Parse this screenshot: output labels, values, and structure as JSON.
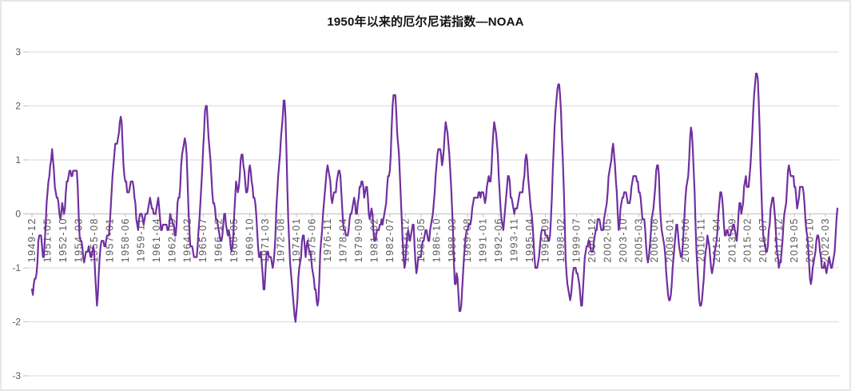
{
  "frame": {
    "background": "#ffffff",
    "border_color": "#e7e7e7"
  },
  "chart_data": {
    "type": "line",
    "title": "1950年以来的厄尔尼诺指数—NOAA",
    "series_name": "厄尔尼诺指数 (NOAA ONI)",
    "x_start": "1949-12",
    "x_end": "2023-04",
    "x_tick_interval_months": 17,
    "x_tick_labels": [
      "1949-12",
      "1951-05",
      "1952-10",
      "1954-03",
      "1955-08",
      "1957-01",
      "1958-06",
      "1959-11",
      "1961-04",
      "1962-09",
      "1964-02",
      "1965-07",
      "1966-12",
      "1968-05",
      "1969-10",
      "1971-03",
      "1972-08",
      "1974-01",
      "1975-06",
      "1976-11",
      "1978-04",
      "1979-09",
      "1981-02",
      "1982-07",
      "1983-12",
      "1985-05",
      "1986-10",
      "1988-03",
      "1989-08",
      "1991-01",
      "1992-06",
      "1993-11",
      "1995-04",
      "1996-09",
      "1998-02",
      "1999-07",
      "2000-12",
      "2002-05",
      "2003-10",
      "2005-03",
      "2006-08",
      "2008-01",
      "2009-06",
      "2010-11",
      "2012-04",
      "2013-09",
      "2015-02",
      "2016-07",
      "2017-12",
      "2019-05",
      "2020-10",
      "2022-03"
    ],
    "y_ticks": [
      3,
      2,
      1,
      0,
      -1,
      -2,
      -3
    ],
    "y_tick_labels": [
      "3",
      "2",
      "1",
      "0",
      "-1",
      "-2",
      "-3"
    ],
    "ylim": [
      -3,
      3
    ],
    "grid": true,
    "legend": "none",
    "line_color": "#7030A0",
    "gridline_color": "#d9d9d9",
    "axis_line_color": "#bfbfbf",
    "axis_label_color": "#595959",
    "values": [
      -1.4,
      -1.5,
      -1.3,
      -1.2,
      -1.2,
      -1.1,
      -0.9,
      -0.5,
      -0.4,
      -0.4,
      -0.4,
      -0.6,
      -0.8,
      -0.8,
      -0.5,
      -0.2,
      0.2,
      0.4,
      0.6,
      0.7,
      0.9,
      1.0,
      1.2,
      1.0,
      0.8,
      0.5,
      0.4,
      0.3,
      0.3,
      0.2,
      0.0,
      -0.1,
      0.0,
      0.2,
      0.1,
      0.0,
      0.1,
      0.4,
      0.6,
      0.6,
      0.7,
      0.8,
      0.8,
      0.7,
      0.7,
      0.8,
      0.8,
      0.8,
      0.8,
      0.8,
      0.5,
      0.0,
      -0.4,
      -0.5,
      -0.5,
      -0.6,
      -0.8,
      -0.9,
      -0.8,
      -0.7,
      -0.7,
      -0.7,
      -0.6,
      -0.7,
      -0.8,
      -0.8,
      -0.7,
      -0.6,
      -0.7,
      -1.1,
      -1.4,
      -1.7,
      -1.5,
      -1.1,
      -0.8,
      -0.6,
      -0.5,
      -0.5,
      -0.5,
      -0.6,
      -0.6,
      -0.5,
      -0.4,
      -0.4,
      -0.4,
      -0.2,
      0.1,
      0.4,
      0.7,
      0.9,
      1.1,
      1.3,
      1.3,
      1.3,
      1.4,
      1.5,
      1.7,
      1.8,
      1.7,
      1.3,
      0.9,
      0.7,
      0.6,
      0.6,
      0.4,
      0.4,
      0.4,
      0.5,
      0.6,
      0.6,
      0.6,
      0.5,
      0.3,
      0.2,
      -0.1,
      -0.2,
      -0.3,
      -0.1,
      0.0,
      0.0,
      0.0,
      -0.1,
      -0.2,
      -0.1,
      0.0,
      0.0,
      0.0,
      0.1,
      0.2,
      0.3,
      0.2,
      0.1,
      0.1,
      0.0,
      0.0,
      0.0,
      0.1,
      0.2,
      0.3,
      0.1,
      -0.1,
      -0.3,
      -0.3,
      -0.2,
      -0.2,
      -0.2,
      -0.2,
      -0.2,
      -0.3,
      -0.3,
      -0.2,
      0.0,
      -0.1,
      -0.1,
      -0.2,
      -0.2,
      -0.4,
      -0.4,
      -0.2,
      0.2,
      0.3,
      0.3,
      0.5,
      0.9,
      1.1,
      1.2,
      1.3,
      1.4,
      1.3,
      1.1,
      0.6,
      0.1,
      -0.3,
      -0.6,
      -0.6,
      -0.6,
      -0.7,
      -0.8,
      -0.8,
      -0.8,
      -0.8,
      -0.6,
      -0.3,
      -0.1,
      0.2,
      0.5,
      0.8,
      1.2,
      1.5,
      1.9,
      2.0,
      2.0,
      1.7,
      1.4,
      1.2,
      1.0,
      0.7,
      0.4,
      0.2,
      0.2,
      0.1,
      -0.1,
      -0.1,
      -0.2,
      -0.3,
      -0.4,
      -0.5,
      -0.5,
      -0.4,
      -0.2,
      0.0,
      0.0,
      -0.2,
      -0.3,
      -0.4,
      -0.3,
      -0.4,
      -0.6,
      -0.7,
      -0.6,
      -0.4,
      0.0,
      0.3,
      0.6,
      0.5,
      0.4,
      0.5,
      0.7,
      1.0,
      1.1,
      1.1,
      0.9,
      0.8,
      0.6,
      0.4,
      0.4,
      0.5,
      0.8,
      0.9,
      0.8,
      0.6,
      0.5,
      0.3,
      0.3,
      0.2,
      0.0,
      -0.3,
      -0.6,
      -0.8,
      -0.8,
      -0.7,
      -0.9,
      -1.1,
      -1.4,
      -1.4,
      -1.1,
      -0.8,
      -0.7,
      -0.7,
      -0.8,
      -0.8,
      -0.8,
      -0.9,
      -1.0,
      -0.9,
      -0.7,
      -0.4,
      0.1,
      0.4,
      0.7,
      0.9,
      1.1,
      1.4,
      1.6,
      1.8,
      2.1,
      2.1,
      1.8,
      1.2,
      0.5,
      -0.1,
      -0.5,
      -0.9,
      -1.1,
      -1.3,
      -1.5,
      -1.7,
      -1.9,
      -2.0,
      -1.8,
      -1.6,
      -1.2,
      -1.0,
      -0.9,
      -0.8,
      -0.5,
      -0.4,
      -0.4,
      -0.6,
      -0.8,
      -0.6,
      -0.5,
      -0.6,
      -0.7,
      -0.7,
      -0.8,
      -1.0,
      -1.1,
      -1.2,
      -1.4,
      -1.4,
      -1.6,
      -1.7,
      -1.6,
      -1.2,
      -0.7,
      -0.5,
      -0.3,
      0.0,
      0.2,
      0.4,
      0.6,
      0.8,
      0.9,
      0.8,
      0.7,
      0.6,
      0.3,
      0.2,
      0.3,
      0.4,
      0.4,
      0.4,
      0.6,
      0.7,
      0.8,
      0.8,
      0.7,
      0.4,
      0.1,
      -0.2,
      -0.3,
      -0.3,
      -0.4,
      -0.4,
      -0.4,
      -0.3,
      -0.1,
      0.0,
      0.0,
      0.1,
      0.2,
      0.3,
      0.2,
      0.0,
      0.0,
      0.2,
      0.3,
      0.5,
      0.5,
      0.6,
      0.6,
      0.5,
      0.3,
      0.4,
      0.5,
      0.5,
      0.3,
      0.0,
      -0.1,
      0.0,
      0.1,
      0.0,
      -0.3,
      -0.5,
      -0.5,
      -0.4,
      -0.3,
      -0.3,
      -0.3,
      -0.2,
      -0.2,
      -0.1,
      -0.2,
      -0.1,
      0.0,
      0.1,
      0.2,
      0.5,
      0.7,
      0.7,
      0.8,
      1.1,
      1.6,
      2.0,
      2.2,
      2.2,
      2.2,
      1.9,
      1.5,
      1.3,
      1.1,
      0.7,
      0.3,
      -0.1,
      -0.5,
      -0.8,
      -1.0,
      -0.9,
      -0.6,
      -0.4,
      -0.3,
      -0.4,
      -0.5,
      -0.4,
      -0.3,
      -0.2,
      -0.2,
      -0.6,
      -0.9,
      -1.1,
      -1.0,
      -0.8,
      -0.8,
      -0.8,
      -0.8,
      -0.6,
      -0.5,
      -0.5,
      -0.4,
      -0.3,
      -0.3,
      -0.4,
      -0.5,
      -0.5,
      -0.3,
      -0.2,
      -0.1,
      0.0,
      0.2,
      0.4,
      0.7,
      0.9,
      1.1,
      1.2,
      1.2,
      1.2,
      1.1,
      0.9,
      1.0,
      1.2,
      1.5,
      1.7,
      1.6,
      1.5,
      1.3,
      1.1,
      0.8,
      0.5,
      0.1,
      -0.3,
      -0.9,
      -1.3,
      -1.3,
      -1.1,
      -1.2,
      -1.5,
      -1.8,
      -1.8,
      -1.7,
      -1.4,
      -1.1,
      -0.8,
      -0.6,
      -0.4,
      -0.3,
      -0.3,
      -0.2,
      -0.2,
      -0.2,
      -0.1,
      0.1,
      0.2,
      0.3,
      0.3,
      0.3,
      0.3,
      0.3,
      0.4,
      0.4,
      0.3,
      0.4,
      0.4,
      0.4,
      0.3,
      0.2,
      0.3,
      0.5,
      0.6,
      0.7,
      0.6,
      0.6,
      0.8,
      1.2,
      1.5,
      1.7,
      1.6,
      1.5,
      1.3,
      1.1,
      0.7,
      0.4,
      0.1,
      -0.1,
      -0.2,
      -0.3,
      -0.1,
      0.1,
      0.3,
      0.5,
      0.7,
      0.7,
      0.6,
      0.3,
      0.3,
      0.2,
      0.1,
      0.0,
      0.1,
      0.1,
      0.1,
      0.2,
      0.3,
      0.4,
      0.4,
      0.4,
      0.4,
      0.6,
      0.7,
      1.0,
      1.1,
      1.0,
      0.7,
      0.5,
      0.3,
      0.1,
      0.0,
      -0.2,
      -0.5,
      -0.8,
      -1.0,
      -1.0,
      -1.0,
      -0.9,
      -0.8,
      -0.6,
      -0.4,
      -0.3,
      -0.3,
      -0.3,
      -0.3,
      -0.4,
      -0.4,
      -0.4,
      -0.5,
      -0.5,
      -0.4,
      -0.1,
      0.3,
      0.8,
      1.2,
      1.6,
      1.9,
      2.1,
      2.3,
      2.4,
      2.4,
      2.2,
      1.9,
      1.4,
      1.0,
      0.5,
      -0.1,
      -0.8,
      -1.1,
      -1.3,
      -1.4,
      -1.5,
      -1.6,
      -1.5,
      -1.3,
      -1.1,
      -1.0,
      -1.0,
      -1.0,
      -1.1,
      -1.1,
      -1.2,
      -1.3,
      -1.5,
      -1.7,
      -1.7,
      -1.4,
      -1.1,
      -0.8,
      -0.7,
      -0.6,
      -0.6,
      -0.5,
      -0.5,
      -0.6,
      -0.7,
      -0.7,
      -0.7,
      -0.5,
      -0.4,
      -0.3,
      -0.3,
      -0.1,
      -0.1,
      -0.1,
      -0.2,
      -0.3,
      -0.3,
      -0.3,
      -0.1,
      0.0,
      0.1,
      0.2,
      0.4,
      0.7,
      0.8,
      0.9,
      1.0,
      1.2,
      1.3,
      1.1,
      0.9,
      0.6,
      0.4,
      0.0,
      -0.3,
      -0.2,
      0.1,
      0.2,
      0.3,
      0.3,
      0.4,
      0.4,
      0.4,
      0.3,
      0.2,
      0.2,
      0.2,
      0.3,
      0.5,
      0.6,
      0.7,
      0.7,
      0.7,
      0.7,
      0.6,
      0.6,
      0.4,
      0.4,
      0.3,
      0.1,
      -0.1,
      -0.1,
      -0.1,
      -0.3,
      -0.6,
      -0.8,
      -0.9,
      -0.8,
      -0.6,
      -0.4,
      -0.1,
      0.0,
      0.1,
      0.3,
      0.5,
      0.8,
      0.9,
      0.9,
      0.7,
      0.2,
      -0.1,
      -0.3,
      -0.4,
      -0.5,
      -0.6,
      -0.8,
      -1.1,
      -1.3,
      -1.5,
      -1.6,
      -1.6,
      -1.5,
      -1.3,
      -1.0,
      -0.8,
      -0.6,
      -0.4,
      -0.2,
      -0.2,
      -0.4,
      -0.6,
      -0.7,
      -0.8,
      -0.8,
      -0.6,
      -0.3,
      0.0,
      0.3,
      0.5,
      0.6,
      0.7,
      1.0,
      1.4,
      1.6,
      1.5,
      1.2,
      0.8,
      0.4,
      -0.2,
      -0.7,
      -1.0,
      -1.3,
      -1.6,
      -1.7,
      -1.7,
      -1.6,
      -1.4,
      -1.2,
      -0.9,
      -0.7,
      -0.6,
      -0.4,
      -0.5,
      -0.6,
      -0.8,
      -1.0,
      -1.1,
      -1.0,
      -0.9,
      -0.7,
      -0.6,
      -0.5,
      -0.3,
      0.0,
      0.2,
      0.4,
      0.4,
      0.3,
      0.1,
      -0.2,
      -0.4,
      -0.4,
      -0.3,
      -0.3,
      -0.4,
      -0.4,
      -0.4,
      -0.3,
      -0.3,
      -0.2,
      -0.2,
      -0.3,
      -0.4,
      -0.5,
      -0.3,
      0.0,
      0.2,
      0.2,
      0.0,
      0.1,
      0.2,
      0.5,
      0.6,
      0.7,
      0.5,
      0.5,
      0.5,
      0.7,
      0.9,
      1.2,
      1.5,
      1.9,
      2.2,
      2.4,
      2.6,
      2.6,
      2.5,
      2.1,
      1.6,
      0.9,
      0.4,
      -0.1,
      -0.4,
      -0.5,
      -0.6,
      -0.7,
      -0.7,
      -0.6,
      -0.3,
      -0.2,
      0.1,
      0.2,
      0.3,
      0.3,
      0.1,
      -0.1,
      -0.4,
      -0.7,
      -0.8,
      -1.0,
      -0.9,
      -0.9,
      -0.7,
      -0.5,
      -0.2,
      0.0,
      0.1,
      0.2,
      0.5,
      0.8,
      0.9,
      0.8,
      0.7,
      0.7,
      0.7,
      0.7,
      0.5,
      0.5,
      0.3,
      0.1,
      0.2,
      0.3,
      0.5,
      0.5,
      0.5,
      0.5,
      0.4,
      0.2,
      -0.1,
      -0.3,
      -0.4,
      -0.6,
      -0.9,
      -1.2,
      -1.3,
      -1.2,
      -1.0,
      -0.9,
      -0.8,
      -0.7,
      -0.5,
      -0.4,
      -0.4,
      -0.5,
      -0.7,
      -0.8,
      -1.0,
      -1.0,
      -1.0,
      -0.9,
      -1.0,
      -1.1,
      -1.0,
      -0.9,
      -0.8,
      -0.9,
      -1.0,
      -1.0,
      -0.9,
      -0.8,
      -0.7,
      -0.4,
      -0.1,
      0.1
    ]
  }
}
